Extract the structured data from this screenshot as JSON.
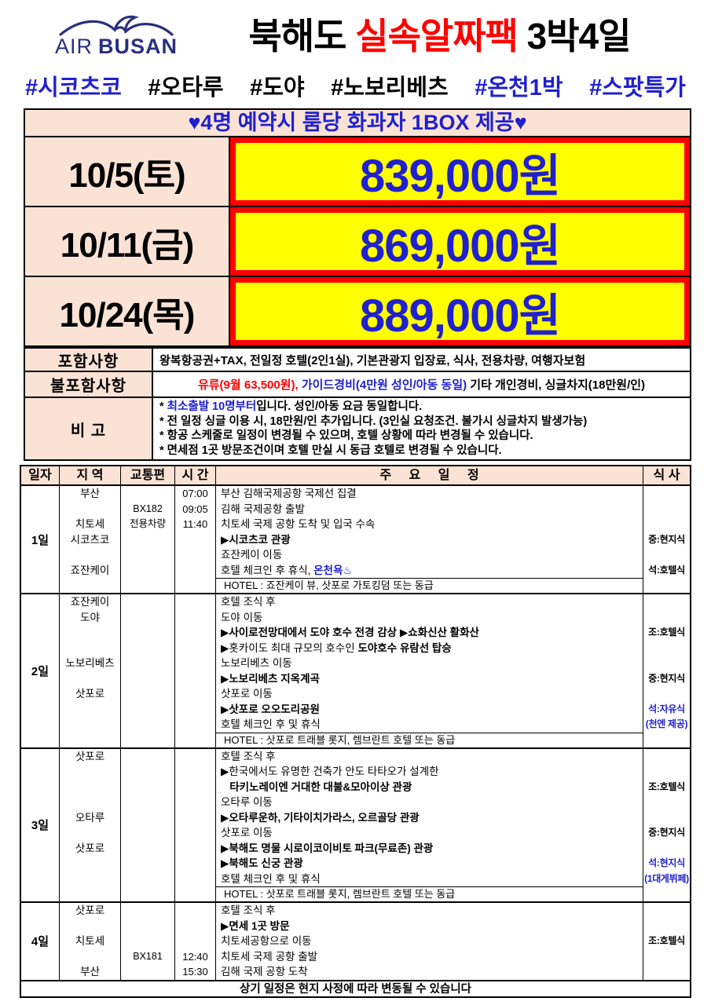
{
  "colors": {
    "accent_blue": "#2020CE",
    "accent_red": "#FF0000",
    "peach_bg": "#FAE3D5",
    "price_bg": "#FFFF00",
    "logo_navy": "#2A2F7D"
  },
  "header": {
    "logo_air": "AIR",
    "logo_busan": "BUSAN",
    "title": [
      {
        "t": "북해도 "
      },
      {
        "t": "실속알짜팩",
        "c": "red"
      },
      {
        "t": " 3박4일"
      }
    ]
  },
  "hashtags": [
    {
      "t": "#시코츠코",
      "c": "blue"
    },
    {
      "t": "#오타루"
    },
    {
      "t": "#도야"
    },
    {
      "t": "#노보리베츠"
    },
    {
      "t": "#온천1박",
      "c": "blue"
    },
    {
      "t": "#스팟특가",
      "c": "blue"
    }
  ],
  "promo_banner": "♥4명 예약시 룸당 화과자 1BOX 제공♥",
  "prices": [
    {
      "date": "10/5(토)",
      "price": "839,000원"
    },
    {
      "date": "10/11(금)",
      "price": "869,000원"
    },
    {
      "date": "10/24(목)",
      "price": "889,000원"
    }
  ],
  "info": {
    "included_label": "포함사항",
    "included": "왕복항공권+TAX, 전일정 호텔(2인1실), 기본관광지 입장료, 식사, 전용차량, 여행자보험",
    "excluded_label": "불포함사항",
    "excluded_segments": [
      {
        "t": "유류(9월 63,500원), ",
        "c": "red"
      },
      {
        "t": "가이드경비(4만원 성인/아동 동일)",
        "c": "blue",
        "b": true
      },
      {
        "t": " 기타 개인경비, 싱글차지(18만원/인)"
      }
    ],
    "notes_label": "비 고",
    "notes": [
      [
        {
          "t": "* "
        },
        {
          "t": "최소출발 10명부터",
          "c": "blue",
          "b": true
        },
        {
          "t": "입니다. 성인/아동 요금 동일합니다."
        }
      ],
      [
        {
          "t": "* 전 일정 싱글 이용 시, 18만원/인 추가입니다. (3인실 요청조건. 불가시 싱글차지 발생가능)"
        }
      ],
      [
        {
          "t": "* 항공 스케줄로 일정이 변경될 수 있으며, 호텔 상황에 따라 변경될 수 있습니다."
        }
      ],
      [
        {
          "t": "* 면세점 1곳 방문조건이며 호텔 만실 시 동급 호텔로 변경될 수 있습니다."
        }
      ]
    ]
  },
  "itinerary": {
    "headers": [
      "일자",
      "지 역",
      "교통편",
      "시 간",
      "주 요 일 정",
      "식 사"
    ],
    "days": [
      {
        "day": "1일",
        "regions": [
          "부산",
          "",
          "치토세",
          "시코츠코",
          "",
          "죠잔케이"
        ],
        "transport": [
          "",
          "BX182",
          "전용차량"
        ],
        "times": [
          "07:00",
          "09:05",
          "11:40"
        ],
        "lines": [
          [
            {
              "t": "부산 김해국제공항 국제선 집결"
            }
          ],
          [
            {
              "t": "김해 국제공항 출발"
            }
          ],
          [
            {
              "t": "치토세 국제 공항 도착 및 입국 수속"
            }
          ],
          [
            {
              "t": "▶시코츠코 관광",
              "b": true
            }
          ],
          [
            {
              "t": "죠잔케이 이동"
            }
          ],
          [
            {
              "t": "호텔 체크인 후 휴식, "
            },
            {
              "t": "온천욕♨",
              "c": "blue",
              "b": true
            }
          ]
        ],
        "hotel": "HOTEL : 죠잔케이 뷰, 삿포로 가토킹덤 또는 동급",
        "meals": [
          {
            "t": ""
          },
          {
            "t": ""
          },
          {
            "t": ""
          },
          {
            "t": "중:현지식"
          },
          {
            "t": ""
          },
          {
            "t": "석:호텔식"
          }
        ]
      },
      {
        "day": "2일",
        "regions": [
          "죠잔케이",
          "도야",
          "",
          "",
          "노보리베츠",
          "",
          "삿포로"
        ],
        "transport": [],
        "times": [],
        "lines": [
          [
            {
              "t": "호텔 조식 후"
            }
          ],
          [
            {
              "t": "도야 이동"
            }
          ],
          [
            {
              "t": "▶사이로전망대에서 도야 호수 전경 감상 ▶쇼화신산 활화산",
              "b": true
            }
          ],
          [
            {
              "t": "▶홋카이도 최대 규모의 호수인 "
            },
            {
              "t": "도야호수 유람선 탑승",
              "b": true
            }
          ],
          [
            {
              "t": "노보리베츠 이동"
            }
          ],
          [
            {
              "t": "▶노보리베츠 지옥계곡",
              "b": true
            }
          ],
          [
            {
              "t": "삿포로 이동"
            }
          ],
          [
            {
              "t": "▶삿포로 오오도리공원",
              "b": true
            }
          ],
          [
            {
              "t": "호텔 체크인 후 및 휴식"
            }
          ]
        ],
        "hotel": "HOTEL : 삿포로 트래블 롯지, 렘브란트 호텔 또는 동급",
        "meals": [
          {
            "t": ""
          },
          {
            "t": ""
          },
          {
            "t": "조:호텔식"
          },
          {
            "t": ""
          },
          {
            "t": ""
          },
          {
            "t": "중:현지식"
          },
          {
            "t": ""
          },
          {
            "t": "석:자유식",
            "c": "blue"
          },
          {
            "t": "(천엔 제공)",
            "c": "blue"
          }
        ]
      },
      {
        "day": "3일",
        "regions": [
          "삿포로",
          "",
          "",
          "",
          "오타루",
          "",
          "삿포로"
        ],
        "transport": [],
        "times": [],
        "lines": [
          [
            {
              "t": "호텔 조식 후"
            }
          ],
          [
            {
              "t": "▶한국에서도 유명한 건축가 안도 타타오가 설계한"
            }
          ],
          [
            {
              "t": "   타키노레이엔 거대한 대불&모아이상 관광",
              "b": true
            }
          ],
          [
            {
              "t": "오타루 이동"
            }
          ],
          [
            {
              "t": "▶오타루운하, 기타이치가라스, 오르골당 관광",
              "b": true
            }
          ],
          [
            {
              "t": "삿포로 이동"
            }
          ],
          [
            {
              "t": "▶북해도 명물 시로이코이비토 파크(무료존) 관광",
              "b": true
            }
          ],
          [
            {
              "t": "▶북해도 신궁 관광",
              "b": true
            }
          ],
          [
            {
              "t": "호텔 체크인 후 및 휴식"
            }
          ]
        ],
        "hotel": "HOTEL : 삿포로 트래블 롯지, 렘브란트 호텔 또는 동급",
        "meals": [
          {
            "t": ""
          },
          {
            "t": ""
          },
          {
            "t": "조:호텔식"
          },
          {
            "t": ""
          },
          {
            "t": ""
          },
          {
            "t": "중:현지식"
          },
          {
            "t": ""
          },
          {
            "t": "석:현지식",
            "c": "blue"
          },
          {
            "t": "(1대게뷔페)",
            "c": "blue"
          }
        ]
      },
      {
        "day": "4일",
        "regions": [
          "삿포로",
          "",
          "치토세",
          "",
          "부산"
        ],
        "transport": [
          "",
          "",
          "",
          "BX181"
        ],
        "times": [
          "",
          "",
          "",
          "12:40",
          "15:30"
        ],
        "lines": [
          [
            {
              "t": "호텔 조식 후"
            }
          ],
          [
            {
              "t": "▶면세 1곳 방문",
              "b": true
            }
          ],
          [
            {
              "t": "치토세공항으로 이동"
            }
          ],
          [
            {
              "t": "치토세 국제 공항 출발"
            }
          ],
          [
            {
              "t": "김해 국제 공항 도착"
            }
          ]
        ],
        "hotel": null,
        "meals": [
          {
            "t": ""
          },
          {
            "t": ""
          },
          {
            "t": "조:호텔식"
          }
        ]
      }
    ]
  },
  "footer": "상기 일정은 현지 사정에 따라 변동될 수 있습니다"
}
